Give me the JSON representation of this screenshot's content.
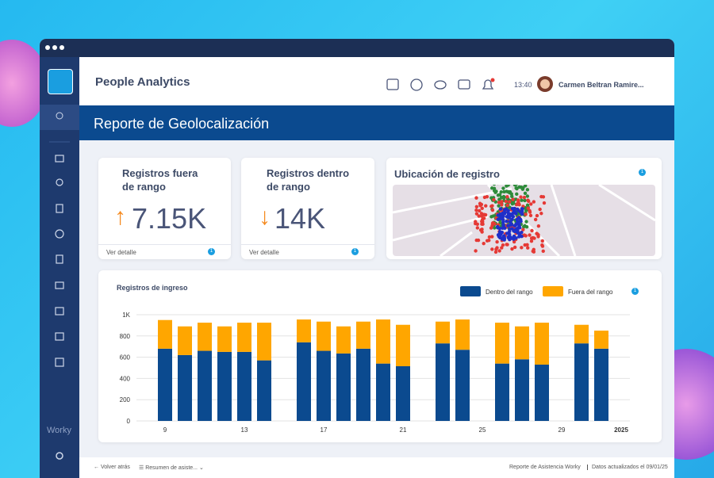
{
  "app": {
    "title": "People Analytics",
    "time": "13:40",
    "user": "Carmen Beltran Ramire...",
    "brand": "Worky"
  },
  "report": {
    "title": "Reporte de Geolocalización"
  },
  "cards": [
    {
      "title": "Registros fuera de rango",
      "value": "7.15K",
      "link": "Ver detalle",
      "badge": "1"
    },
    {
      "title": "Registros dentro de rango",
      "value": "14K",
      "link": "Ver detalle",
      "badge": "1"
    },
    {
      "title": "Ubicación de registro",
      "badge": "1"
    }
  ],
  "chart_badge": "1",
  "chart_data": {
    "type": "stacked_bar",
    "title": "Registros de ingreso",
    "categories": [
      "9",
      null,
      null,
      null,
      "13",
      null,
      null,
      null,
      "17",
      null,
      null,
      null,
      "21",
      null,
      null,
      null,
      "25",
      null,
      null,
      null,
      "29",
      null,
      null,
      "2025"
    ],
    "series": [
      {
        "name": "Dentro del rango",
        "color": "#0b4a8f",
        "values": [
          680,
          620,
          660,
          650,
          650,
          570,
          null,
          740,
          660,
          635,
          680,
          540,
          515,
          null,
          730,
          670,
          null,
          540,
          580,
          530,
          null,
          730,
          680,
          null
        ]
      },
      {
        "name": "Fuera del rango",
        "color": "#ffa600",
        "values": [
          270,
          270,
          265,
          240,
          275,
          355,
          null,
          215,
          275,
          255,
          255,
          415,
          390,
          null,
          205,
          285,
          null,
          385,
          310,
          395,
          null,
          175,
          170,
          null
        ]
      }
    ],
    "ylim": [
      0,
      1000
    ],
    "yticks": [
      0,
      200,
      400,
      600,
      800,
      {
        "value": 1000,
        "label": "1K"
      }
    ],
    "grid": true,
    "legend": "top-right"
  },
  "footer": {
    "back": "Volver atrás",
    "menu": "Resumen de asiste...",
    "report": "Reporte de Asistencia Worky",
    "updated": "Datos actualizados el 09/01/25"
  }
}
